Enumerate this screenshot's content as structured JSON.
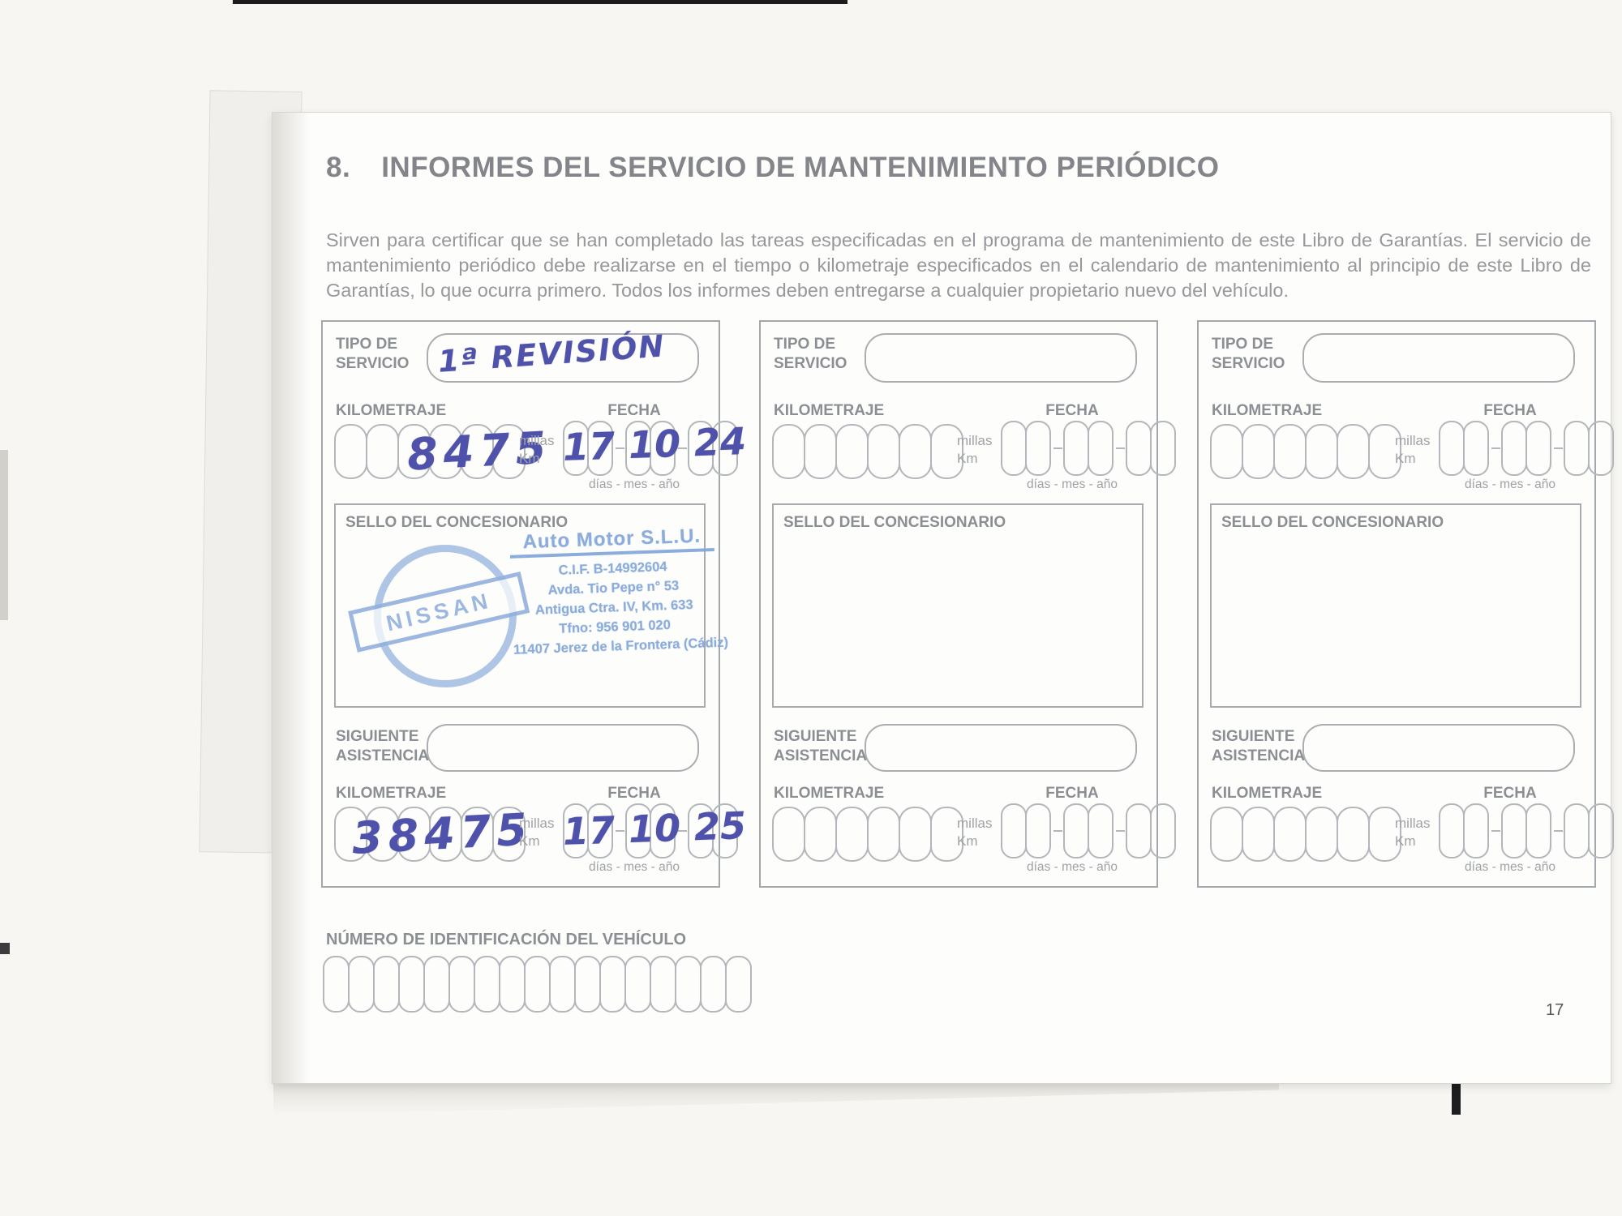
{
  "header": {
    "number": "8.",
    "title": "INFORMES DEL SERVICIO DE MANTENIMIENTO PERIÓDICO"
  },
  "intro": "Sirven para certificar que se han completado las tareas especificadas en el programa de mantenimiento de este Libro de Garantías. El servicio de mantenimiento periódico debe realizarse en el tiempo o kilometraje especificados en el calendario de mantenimiento al principio de este Libro de Garantías, lo que ocurra primero. Todos los informes deben entregarse a cualquier propietario nuevo del vehículo.",
  "labels": {
    "tipo_line1": "TIPO DE",
    "tipo_line2": "SERVICIO",
    "kilometraje": "KILOMETRAJE",
    "fecha": "FECHA",
    "millas": "millas",
    "km": "Km",
    "dias_mes_ano": "días - mes - año",
    "sello": "SELLO DEL CONCESIONARIO",
    "siguiente_line1": "SIGUIENTE",
    "siguiente_line2": "ASISTENCIA",
    "vin": "NÚMERO DE IDENTIFICACIÓN DEL VEHÍCULO"
  },
  "records": [
    {
      "tipo": "1ª REVISIÓN",
      "km": "8475",
      "fecha_d": "17",
      "fecha_m": "10",
      "fecha_a": "24",
      "sig_km": "38475",
      "sig_d": "17",
      "sig_m": "10",
      "sig_a": "25"
    },
    {
      "tipo": "",
      "km": "",
      "fecha_d": "",
      "fecha_m": "",
      "fecha_a": "",
      "sig_km": "",
      "sig_d": "",
      "sig_m": "",
      "sig_a": ""
    },
    {
      "tipo": "",
      "km": "",
      "fecha_d": "",
      "fecha_m": "",
      "fecha_a": "",
      "sig_km": "",
      "sig_d": "",
      "sig_m": "",
      "sig_a": ""
    }
  ],
  "stamp": {
    "brand": "NISSAN",
    "name": "Auto Motor S.L.U.",
    "cif": "C.I.F. B-14992604",
    "addr1": "Avda. Tio Pepe n° 53",
    "addr2": "Antigua Ctra. IV, Km. 633",
    "tel": "Tfno: 956 901 020",
    "city": "11407 Jerez de la Frontera (Cádiz)"
  },
  "footer": {
    "page_number": "17"
  },
  "colors": {
    "ink": "#4f52ab",
    "stamp_blue": "#83a7da",
    "label_gray": "#8b8f94",
    "title_gray": "#84858a",
    "body_gray": "#97989b"
  }
}
